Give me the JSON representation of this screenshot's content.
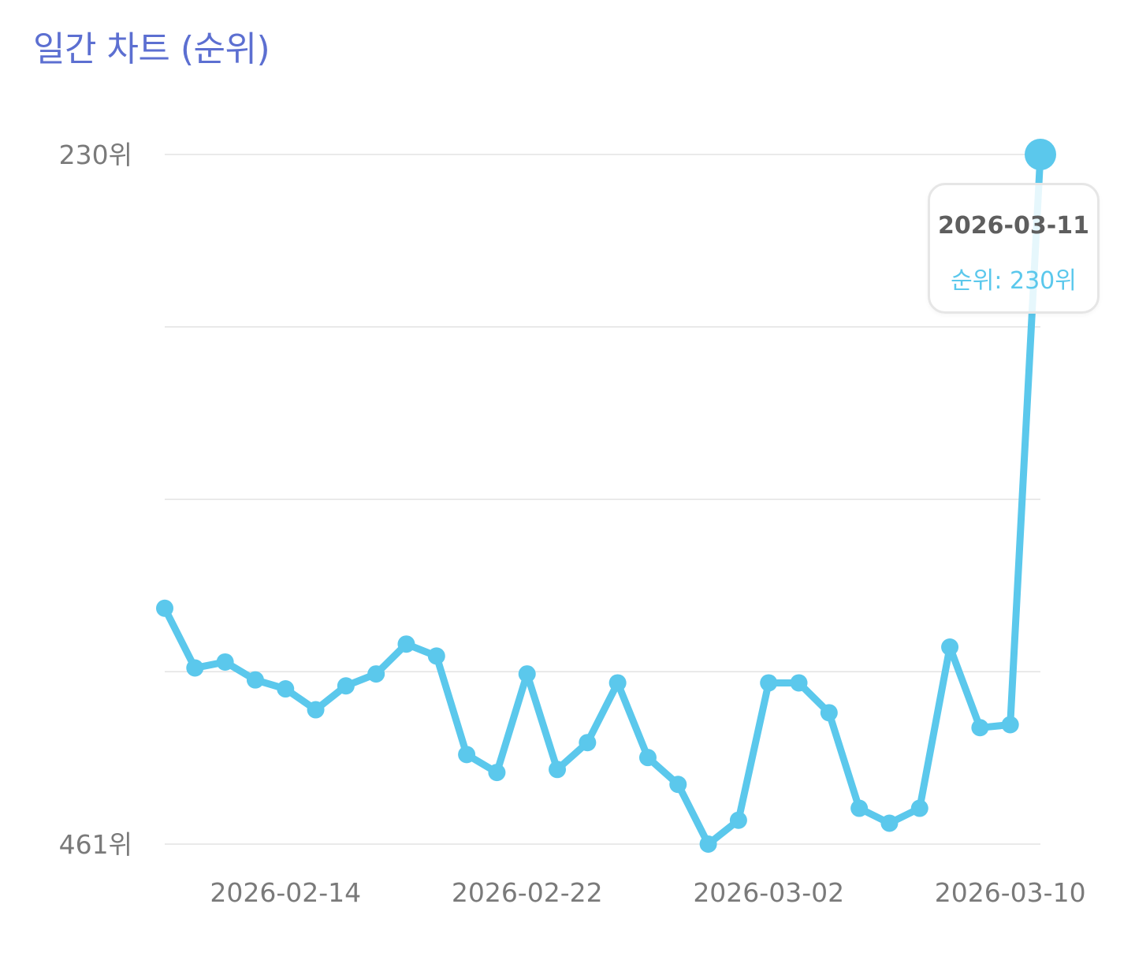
{
  "title": "일간 차트 (순위)",
  "colors": {
    "title": "#5c6fd1",
    "series": "#5bc8ec",
    "grid": "#e3e3e3",
    "tick_text": "#7a7a7a"
  },
  "chart_data": {
    "type": "line",
    "title": "일간 차트 (순위)",
    "xlabel": "",
    "ylabel": "",
    "y_axis_reversed": true,
    "ylim": [
      230,
      461
    ],
    "y_ticks": [
      {
        "value": 230,
        "label": "230위"
      },
      {
        "value": 461,
        "label": "461위"
      }
    ],
    "x_ticks": [
      {
        "value": "2026-02-14",
        "label": "2026-02-14"
      },
      {
        "value": "2026-02-22",
        "label": "2026-02-22"
      },
      {
        "value": "2026-03-02",
        "label": "2026-03-02"
      },
      {
        "value": "2026-03-10",
        "label": "2026-03-10"
      }
    ],
    "grid": true,
    "legend": "none",
    "x": [
      "2026-02-10",
      "2026-02-11",
      "2026-02-12",
      "2026-02-13",
      "2026-02-14",
      "2026-02-15",
      "2026-02-16",
      "2026-02-17",
      "2026-02-18",
      "2026-02-19",
      "2026-02-20",
      "2026-02-21",
      "2026-02-22",
      "2026-02-23",
      "2026-02-24",
      "2026-02-25",
      "2026-02-26",
      "2026-02-27",
      "2026-02-28",
      "2026-03-01",
      "2026-03-02",
      "2026-03-03",
      "2026-03-04",
      "2026-03-05",
      "2026-03-06",
      "2026-03-07",
      "2026-03-08",
      "2026-03-09",
      "2026-03-10",
      "2026-03-11"
    ],
    "series": [
      {
        "values": [
          382,
          402,
          400,
          406,
          409,
          416,
          408,
          404,
          394,
          398,
          431,
          437,
          404,
          436,
          427,
          407,
          432,
          441,
          461,
          453,
          407,
          407,
          417,
          449,
          454,
          449,
          395,
          422,
          421,
          230
        ]
      }
    ]
  },
  "tooltip": {
    "date": "2026-03-11",
    "value_text": "순위: 230위"
  }
}
